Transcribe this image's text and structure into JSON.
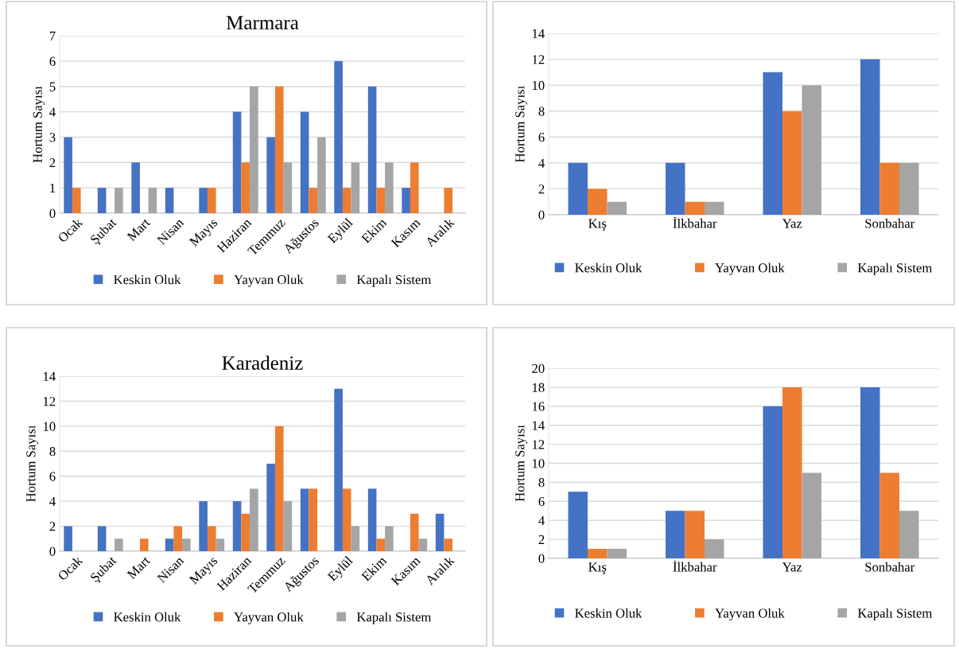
{
  "chart_data": [
    {
      "type": "bar",
      "title": "Marmara",
      "ylabel": "Hortum Sayısı",
      "categories": [
        "Ocak",
        "Şubat",
        "Mart",
        "Nisan",
        "Mayıs",
        "Haziran",
        "Temmuz",
        "Ağustos",
        "Eylül",
        "Ekim",
        "Kasım",
        "Aralık"
      ],
      "series": [
        {
          "name": "Keskin Oluk",
          "color": "#4472c4",
          "values": [
            3,
            1,
            2,
            1,
            1,
            4,
            3,
            4,
            6,
            5,
            1,
            0
          ]
        },
        {
          "name": "Yayvan Oluk",
          "color": "#ed7d31",
          "values": [
            1,
            0,
            0,
            0,
            1,
            2,
            5,
            1,
            1,
            1,
            2,
            1
          ]
        },
        {
          "name": "Kapalı Sistem",
          "color": "#a5a5a5",
          "values": [
            0,
            1,
            1,
            0,
            0,
            5,
            2,
            3,
            2,
            2,
            0,
            0
          ]
        }
      ],
      "ylim": [
        0,
        7
      ],
      "yticks": [
        0,
        1,
        2,
        3,
        4,
        5,
        6,
        7
      ],
      "grid": "y",
      "legend": "bottom"
    },
    {
      "type": "bar",
      "ylabel": "Hortum Sayısı",
      "categories": [
        "Kış",
        "İlkbahar",
        "Yaz",
        "Sonbahar"
      ],
      "series": [
        {
          "name": "Keskin Oluk",
          "color": "#4472c4",
          "values": [
            4,
            4,
            11,
            12
          ]
        },
        {
          "name": "Yayvan Oluk",
          "color": "#ed7d31",
          "values": [
            2,
            1,
            8,
            4
          ]
        },
        {
          "name": "Kapalı Sistem",
          "color": "#a5a5a5",
          "values": [
            1,
            1,
            10,
            4
          ]
        }
      ],
      "ylim": [
        0,
        14
      ],
      "yticks": [
        0,
        2,
        4,
        6,
        8,
        10,
        12,
        14
      ],
      "grid": "y",
      "legend": "bottom"
    },
    {
      "type": "bar",
      "title": "Karadeniz",
      "ylabel": "Hortum Sayısı",
      "categories": [
        "Ocak",
        "Şubat",
        "Mart",
        "Nisan",
        "Mayıs",
        "Haziran",
        "Temmuz",
        "Ağustos",
        "Eylül",
        "Ekim",
        "Kasım",
        "Aralık"
      ],
      "series": [
        {
          "name": "Keskin Oluk",
          "color": "#4472c4",
          "values": [
            2,
            2,
            0,
            1,
            4,
            4,
            7,
            5,
            13,
            5,
            0,
            3
          ]
        },
        {
          "name": "Yayvan Oluk",
          "color": "#ed7d31",
          "values": [
            0,
            0,
            1,
            2,
            2,
            3,
            10,
            5,
            5,
            1,
            3,
            1
          ]
        },
        {
          "name": "Kapalı Sistem",
          "color": "#a5a5a5",
          "values": [
            0,
            1,
            0,
            1,
            1,
            5,
            4,
            0,
            2,
            2,
            1,
            0
          ]
        }
      ],
      "ylim": [
        0,
        14
      ],
      "yticks": [
        0,
        2,
        4,
        6,
        8,
        10,
        12,
        14
      ],
      "grid": "y",
      "legend": "bottom"
    },
    {
      "type": "bar",
      "ylabel": "Hortum Sayısı",
      "categories": [
        "Kış",
        "İlkbahar",
        "Yaz",
        "Sonbahar"
      ],
      "series": [
        {
          "name": "Keskin Oluk",
          "color": "#4472c4",
          "values": [
            7,
            5,
            16,
            18
          ]
        },
        {
          "name": "Yayvan Oluk",
          "color": "#ed7d31",
          "values": [
            1,
            5,
            18,
            9
          ]
        },
        {
          "name": "Kapalı Sistem",
          "color": "#a5a5a5",
          "values": [
            1,
            2,
            9,
            5
          ]
        }
      ],
      "ylim": [
        0,
        20
      ],
      "yticks": [
        0,
        2,
        4,
        6,
        8,
        10,
        12,
        14,
        16,
        18,
        20
      ],
      "grid": "y",
      "legend": "bottom"
    }
  ]
}
